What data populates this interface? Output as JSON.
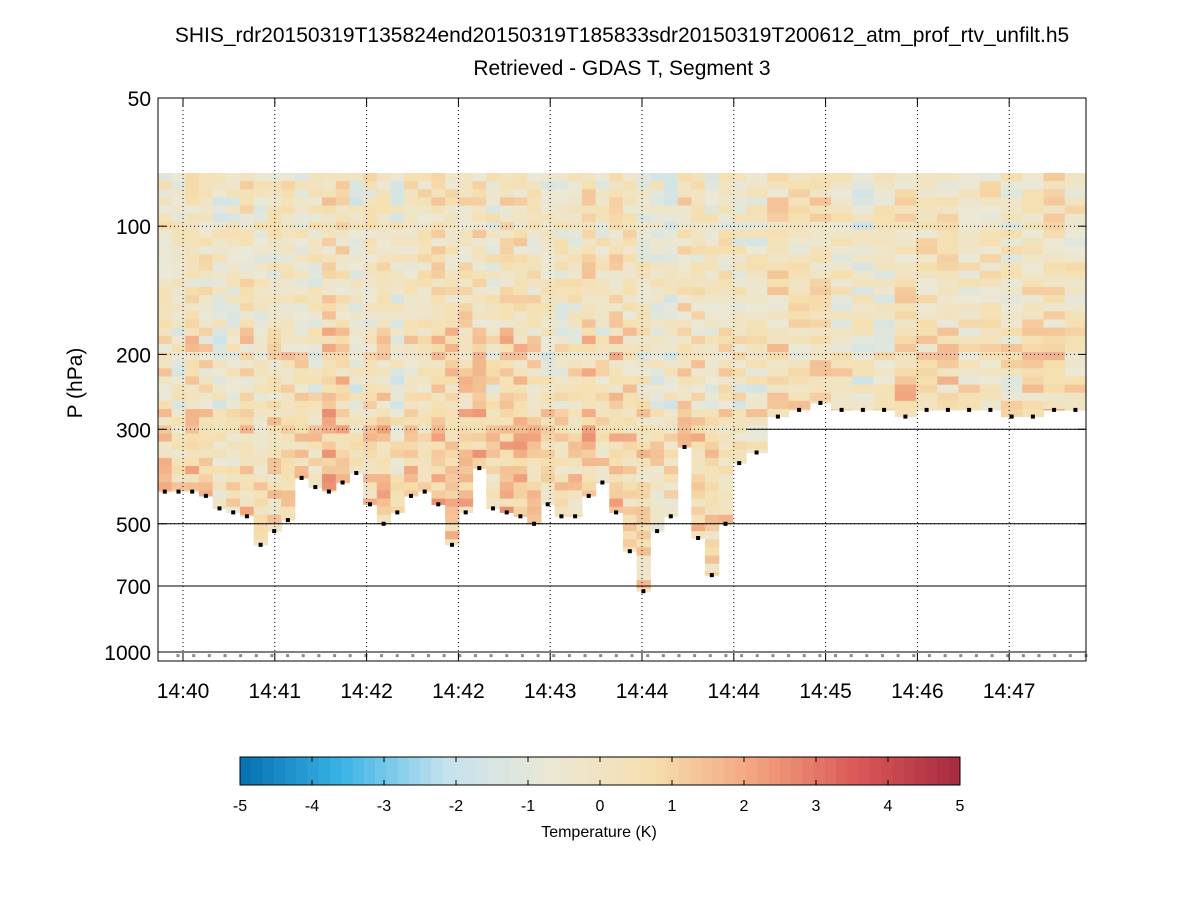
{
  "chart_data": {
    "type": "heatmap",
    "title": "SHIS_rdr20150319T135824end20150319T185833sdr20150319T200612_atm_prof_rtv_unfilt.h5",
    "subtitle": "Retrieved - GDAS T, Segment 3",
    "ylabel": "P (hPa)",
    "yscale": "log",
    "ylim": [
      50,
      1050
    ],
    "y_reversed": true,
    "y_ticks": [
      50,
      100,
      200,
      300,
      500,
      700,
      1000
    ],
    "y_tick_labels": [
      "50",
      "100",
      "200",
      "300",
      "500",
      "700",
      "1000"
    ],
    "x_tick_labels": [
      "14:40",
      "14:41",
      "14:42",
      "14:42",
      "14:43",
      "14:44",
      "14:44",
      "14:45",
      "14:46",
      "14:47"
    ],
    "colorbar": {
      "label": "Temperature (K)",
      "range": [
        -5,
        5
      ],
      "ticks": [
        -5,
        -4,
        -3,
        -2,
        -1,
        0,
        1,
        2,
        3,
        4,
        5
      ],
      "tick_labels": [
        "-5",
        "-4",
        "-3",
        "-2",
        "-1",
        "0",
        "1",
        "2",
        "3",
        "4",
        "5"
      ],
      "colormap": [
        "#0570b0",
        "#3ab4e6",
        "#c5e2ee",
        "#ebe8d6",
        "#f6dfae",
        "#f2a47e",
        "#db5858",
        "#a52a40"
      ]
    },
    "profile_top_hPa": 75,
    "columns_first": 43,
    "columns_second": 16,
    "cloud_top_hPa": [
      420,
      420,
      420,
      430,
      460,
      470,
      480,
      560,
      520,
      490,
      390,
      410,
      420,
      400,
      380,
      450,
      500,
      470,
      430,
      420,
      450,
      560,
      470,
      370,
      460,
      470,
      480,
      500,
      450,
      480,
      480,
      430,
      400,
      470,
      580,
      720,
      520,
      480,
      330,
      540,
      660,
      500,
      360,
      340,
      280,
      270,
      260,
      270,
      270,
      270,
      280,
      270,
      270,
      270,
      270,
      280,
      280,
      270,
      270
    ],
    "surface_hPa": 1020,
    "surface_markers_count": 59,
    "reference_lines_hPa": [
      300,
      500,
      700,
      1000
    ]
  }
}
